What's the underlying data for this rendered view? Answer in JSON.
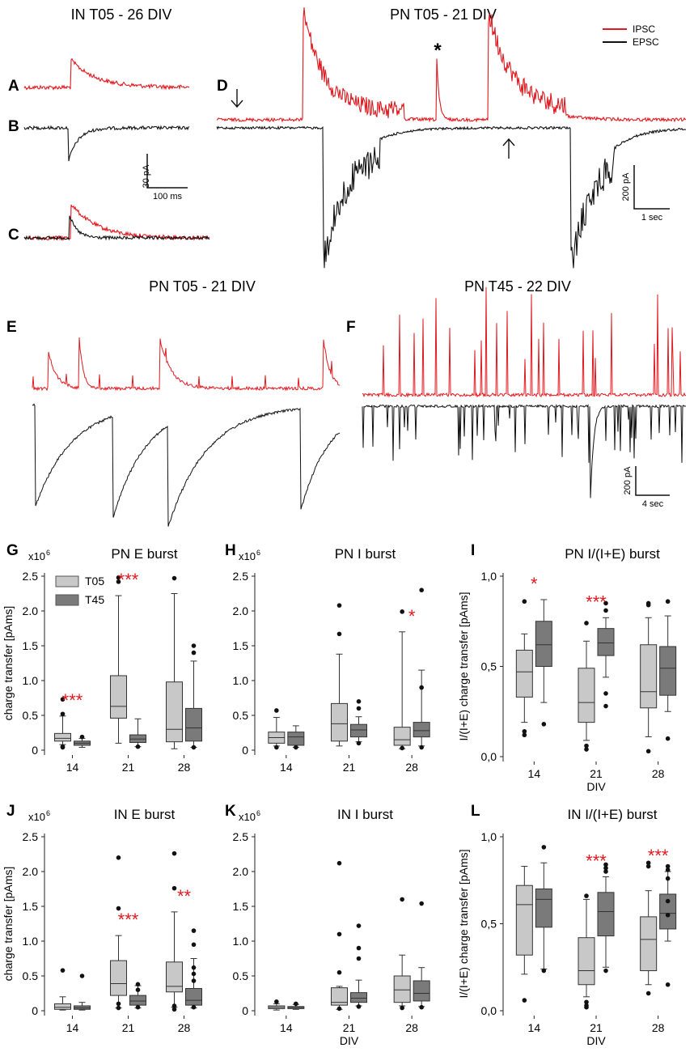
{
  "colors": {
    "ipsc": "#e0191f",
    "epsc": "#111111",
    "t05_box": "#c8c8c8",
    "t45_box": "#7a7a7a",
    "star": "#e0191f"
  },
  "traces": {
    "title_A": "IN T05 - 26 DIV",
    "title_D": "PN T05 - 21 DIV",
    "title_E": "PN T05 - 21 DIV",
    "title_F": "PN T45 - 22 DIV",
    "legend": [
      "IPSC",
      "EPSC"
    ],
    "scale_ABC": {
      "y": "30 pA",
      "x": "100 ms"
    },
    "scale_D": {
      "y": "200 pA",
      "x": "1 sec"
    },
    "scale_F": {
      "y": "200 pA",
      "x": "4 sec"
    },
    "asterisk": "*"
  },
  "chart_data": [
    {
      "panel": "G",
      "type": "box",
      "title": "PN E burst",
      "xlabel": "",
      "ylabel": "charge transfer [pAms]",
      "multiplier": "x10",
      "exp": "6",
      "categories": [
        "14",
        "21",
        "28"
      ],
      "ylim": [
        0,
        2.5
      ],
      "yticks": [
        "0",
        "0.5",
        "1.0",
        "1.5",
        "2.0",
        "2.5"
      ],
      "legend": [
        "T05",
        "T45"
      ],
      "series": [
        {
          "name": "T05",
          "boxes": [
            [
              0.08,
              0.13,
              0.17,
              0.24,
              0.49
            ],
            [
              0.1,
              0.46,
              0.63,
              1.07,
              2.22
            ],
            [
              0.02,
              0.12,
              0.3,
              0.98,
              2.25
            ]
          ],
          "outliers": [
            [
              0.73,
              0.52,
              0.05,
              0.04
            ],
            [
              2.48,
              2.42
            ],
            [
              2.47
            ]
          ]
        },
        {
          "name": "T45",
          "boxes": [
            [
              0.04,
              0.07,
              0.1,
              0.13,
              0.17
            ],
            [
              0.05,
              0.11,
              0.16,
              0.22,
              0.45
            ],
            [
              0.04,
              0.13,
              0.32,
              0.6,
              1.28
            ]
          ],
          "outliers": [
            [
              0.19
            ],
            [
              0.05
            ],
            [
              1.5,
              1.4,
              0.04
            ]
          ]
        }
      ],
      "stars": [
        {
          "cat": "14",
          "text": "***"
        },
        {
          "cat": "21",
          "text": "***"
        }
      ]
    },
    {
      "panel": "H",
      "type": "box",
      "title": "PN I burst",
      "xlabel": "",
      "ylabel": "",
      "multiplier": "x10",
      "exp": "6",
      "categories": [
        "14",
        "21",
        "28"
      ],
      "ylim": [
        0,
        2.5
      ],
      "yticks": [
        "0",
        "0.5",
        "1.0",
        "1.5",
        "2.0",
        "2.5"
      ],
      "series": [
        {
          "name": "T05",
          "boxes": [
            [
              0.06,
              0.1,
              0.18,
              0.26,
              0.47
            ],
            [
              0.06,
              0.13,
              0.38,
              0.67,
              1.38
            ],
            [
              0.02,
              0.07,
              0.15,
              0.33,
              1.7
            ]
          ],
          "outliers": [
            [
              0.57,
              0.04
            ],
            [
              2.08,
              1.67
            ],
            [
              1.99,
              0.03
            ]
          ]
        },
        {
          "name": "T45",
          "boxes": [
            [
              0.04,
              0.07,
              0.19,
              0.26,
              0.35
            ],
            [
              0.12,
              0.19,
              0.29,
              0.37,
              0.48
            ],
            [
              0.06,
              0.19,
              0.28,
              0.4,
              1.15
            ]
          ],
          "outliers": [
            [
              0.04
            ],
            [
              0.7,
              0.6,
              0.1
            ],
            [
              2.3,
              0.9,
              0.04
            ]
          ]
        }
      ],
      "stars": [
        {
          "cat": "28",
          "text": "*"
        }
      ]
    },
    {
      "panel": "I",
      "type": "box",
      "title": "PN I/(I+E) burst",
      "xlabel": "DIV",
      "ylabel": "I/(I+E) charge transfer [pAms]",
      "multiplier": "",
      "exp": "",
      "categories": [
        "14",
        "21",
        "28"
      ],
      "ylim": [
        0,
        1
      ],
      "yticks": [
        "0,0",
        "0,5",
        "1,0"
      ],
      "series": [
        {
          "name": "T05",
          "boxes": [
            [
              0.19,
              0.33,
              0.47,
              0.59,
              0.68
            ],
            [
              0.09,
              0.19,
              0.3,
              0.49,
              0.64
            ],
            [
              0.11,
              0.27,
              0.36,
              0.62,
              0.77
            ]
          ],
          "outliers": [
            [
              0.86,
              0.14,
              0.12
            ],
            [
              0.74,
              0.06,
              0.04
            ],
            [
              0.85,
              0.84,
              0.03
            ]
          ]
        },
        {
          "name": "T45",
          "boxes": [
            [
              0.3,
              0.5,
              0.62,
              0.75,
              0.87
            ],
            [
              0.44,
              0.56,
              0.63,
              0.71,
              0.77
            ],
            [
              0.25,
              0.34,
              0.49,
              0.61,
              0.78
            ]
          ],
          "outliers": [
            [
              0.18
            ],
            [
              0.85,
              0.81,
              0.35,
              0.28
            ],
            [
              0.86,
              0.1
            ]
          ]
        }
      ],
      "stars": [
        {
          "cat": "14",
          "text": "*"
        },
        {
          "cat": "21",
          "text": "***"
        }
      ]
    },
    {
      "panel": "J",
      "type": "box",
      "title": "IN E burst",
      "xlabel": "",
      "ylabel": "charge transfer [pAms]",
      "multiplier": "x10",
      "exp": "6",
      "categories": [
        "14",
        "21",
        "28"
      ],
      "ylim": [
        0,
        2.5
      ],
      "yticks": [
        "0",
        "0.5",
        "1.0",
        "1.5",
        "2.0",
        "2.5"
      ],
      "series": [
        {
          "name": "T05",
          "boxes": [
            [
              0.01,
              0.02,
              0.05,
              0.1,
              0.2
            ],
            [
              0.04,
              0.22,
              0.39,
              0.72,
              1.08
            ],
            [
              0.05,
              0.27,
              0.35,
              0.7,
              1.42
            ]
          ],
          "outliers": [
            [
              0.58
            ],
            [
              2.2,
              1.47,
              0.1,
              0.04
            ],
            [
              2.26,
              1.76,
              0.07,
              0.02
            ]
          ]
        },
        {
          "name": "T45",
          "boxes": [
            [
              0.01,
              0.02,
              0.04,
              0.07,
              0.12
            ],
            [
              0.04,
              0.08,
              0.14,
              0.22,
              0.36
            ],
            [
              0.04,
              0.08,
              0.15,
              0.32,
              0.75
            ]
          ],
          "outliers": [
            [
              0.5
            ],
            [
              0.38,
              0.3,
              0.05
            ],
            [
              1.15,
              0.95,
              0.62,
              0.53,
              0.43,
              0.05
            ]
          ]
        }
      ],
      "stars": [
        {
          "cat": "21",
          "text": "***"
        },
        {
          "cat": "28",
          "text": "**"
        }
      ]
    },
    {
      "panel": "K",
      "type": "box",
      "title": "IN I burst",
      "xlabel": "DIV",
      "ylabel": "",
      "multiplier": "x10",
      "exp": "6",
      "categories": [
        "14",
        "21",
        "28"
      ],
      "ylim": [
        0,
        2.5
      ],
      "yticks": [
        "0",
        "0.5",
        "1.0",
        "1.5",
        "2.0",
        "2.5"
      ],
      "series": [
        {
          "name": "T05",
          "boxes": [
            [
              0.01,
              0.03,
              0.05,
              0.07,
              0.1
            ],
            [
              0.02,
              0.08,
              0.12,
              0.33,
              0.35
            ],
            [
              0.07,
              0.12,
              0.3,
              0.5,
              0.8
            ]
          ],
          "outliers": [
            [
              0.13
            ],
            [
              2.12,
              1.1,
              0.55,
              0.03
            ],
            [
              1.6,
              0.04
            ]
          ]
        },
        {
          "name": "T45",
          "boxes": [
            [
              0.02,
              0.03,
              0.05,
              0.06,
              0.09
            ],
            [
              0.07,
              0.12,
              0.18,
              0.26,
              0.44
            ],
            [
              0.06,
              0.14,
              0.25,
              0.43,
              0.62
            ]
          ],
          "outliers": [
            [
              0.1
            ],
            [
              1.22,
              0.9,
              0.75,
              0.06
            ],
            [
              1.54,
              0.05
            ]
          ]
        }
      ],
      "stars": []
    },
    {
      "panel": "L",
      "type": "box",
      "title": "IN I/(I+E) burst",
      "xlabel": "DIV",
      "ylabel": "I/(I+E) charge transfer [pAms]",
      "multiplier": "",
      "exp": "",
      "categories": [
        "14",
        "21",
        "28"
      ],
      "ylim": [
        0,
        1
      ],
      "yticks": [
        "0,0",
        "0,5",
        "1,0"
      ],
      "series": [
        {
          "name": "T05",
          "boxes": [
            [
              0.21,
              0.32,
              0.61,
              0.72,
              0.83
            ],
            [
              0.08,
              0.15,
              0.23,
              0.42,
              0.64
            ],
            [
              0.15,
              0.23,
              0.41,
              0.54,
              0.69
            ]
          ],
          "outliers": [
            [
              0.06
            ],
            [
              0.66,
              0.05,
              0.03,
              0.02
            ],
            [
              0.85,
              0.83,
              0.1
            ]
          ]
        },
        {
          "name": "T45",
          "boxes": [
            [
              0.24,
              0.48,
              0.64,
              0.7,
              0.85
            ],
            [
              0.25,
              0.43,
              0.57,
              0.68,
              0.77
            ],
            [
              0.4,
              0.47,
              0.56,
              0.67,
              0.8
            ]
          ],
          "outliers": [
            [
              0.94,
              0.23
            ],
            [
              0.84,
              0.82,
              0.8,
              0.23
            ],
            [
              0.83,
              0.81,
              0.76,
              0.63,
              0.55,
              0.15
            ]
          ]
        }
      ],
      "stars": [
        {
          "cat": "21",
          "text": "***"
        },
        {
          "cat": "28",
          "text": "***"
        }
      ]
    }
  ]
}
